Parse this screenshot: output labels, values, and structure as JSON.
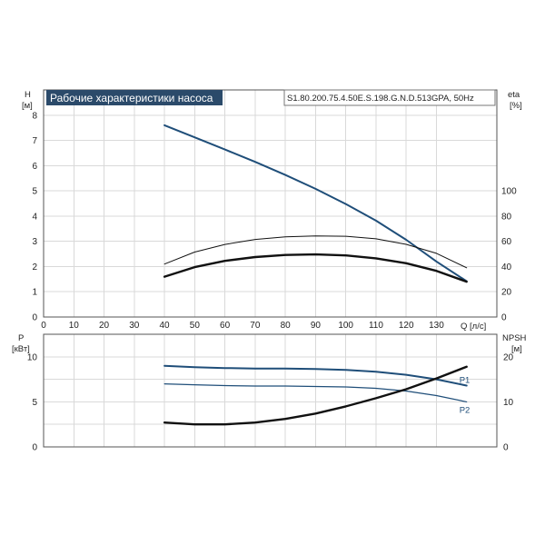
{
  "chart_data": [
    {
      "type": "line",
      "title": "Рабочие характеристики насоса",
      "subtitle": "S1.80.200.75.4.50E.S.198.G.N.D.513GPA, 50Hz",
      "xlabel": "Q [л/с]",
      "ylabel_lines": [
        "H",
        "[м]"
      ],
      "y2label_lines": [
        "eta",
        "[%]"
      ],
      "xlim": [
        0,
        150
      ],
      "ylim": [
        0,
        9
      ],
      "y2lim": [
        0,
        9
      ],
      "x_ticks": [
        0,
        10,
        20,
        30,
        40,
        50,
        60,
        70,
        80,
        90,
        100,
        110,
        120,
        130
      ],
      "y_ticks": [
        0,
        1,
        2,
        3,
        4,
        5,
        6,
        7,
        8
      ],
      "y_tick_labels": [
        "0",
        "1",
        "2",
        "3",
        "4",
        "5",
        "6",
        "7",
        "8"
      ],
      "y2_tick_labels": [
        "0",
        "20",
        "40",
        "60",
        "80",
        "100"
      ],
      "grid": true,
      "series": [
        {
          "key": "H",
          "axis": "left",
          "color": "#1f4e79",
          "width": 2.0,
          "x": [
            40,
            50,
            60,
            70,
            80,
            90,
            100,
            110,
            120,
            130,
            140
          ],
          "y": [
            7.6,
            7.12,
            6.64,
            6.15,
            5.63,
            5.08,
            4.48,
            3.82,
            3.06,
            2.2,
            1.42
          ]
        },
        {
          "key": "eta",
          "axis": "right",
          "color": "#111111",
          "width": 1.0,
          "x": [
            40,
            50,
            60,
            70,
            80,
            90,
            100,
            110,
            120,
            130,
            140
          ],
          "y": [
            42,
            51.5,
            57.5,
            61.5,
            63.5,
            64.3,
            64.0,
            62.0,
            57.6,
            50.5,
            39.0
          ]
        },
        {
          "key": "eta_p",
          "axis": "right",
          "color": "#111111",
          "width": 2.4,
          "x": [
            40,
            50,
            60,
            70,
            80,
            90,
            100,
            110,
            120,
            130,
            140
          ],
          "y": [
            32,
            39.5,
            44.5,
            47.5,
            49.2,
            49.6,
            48.8,
            46.5,
            42.6,
            36.6,
            28.0
          ]
        }
      ]
    },
    {
      "type": "line",
      "xlim": [
        0,
        150
      ],
      "ylim": [
        0,
        12.5
      ],
      "ylabel_lines": [
        "P",
        "[кВт]"
      ],
      "y2label_lines": [
        "NPSH",
        "[м]"
      ],
      "y_ticks": [
        0,
        5,
        10
      ],
      "y_tick_labels": [
        "0",
        "5",
        "10"
      ],
      "y2_ticks": [
        0,
        5,
        10
      ],
      "y2_tick_labels": [
        "0",
        "10",
        "20"
      ],
      "grid": true,
      "series": [
        {
          "key": "P1",
          "name": "P1",
          "color": "#1f4e79",
          "width": 2.0,
          "x": [
            40,
            50,
            60,
            70,
            80,
            90,
            100,
            110,
            120,
            130,
            140
          ],
          "y": [
            9.0,
            8.85,
            8.75,
            8.7,
            8.7,
            8.65,
            8.55,
            8.35,
            8.0,
            7.5,
            6.8
          ]
        },
        {
          "key": "P2",
          "name": "P2",
          "color": "#1f4e79",
          "width": 1.2,
          "x": [
            40,
            50,
            60,
            70,
            80,
            90,
            100,
            110,
            120,
            130,
            140
          ],
          "y": [
            7.0,
            6.9,
            6.8,
            6.75,
            6.75,
            6.7,
            6.65,
            6.5,
            6.2,
            5.7,
            5.0
          ]
        },
        {
          "key": "NPSH",
          "axis": "right",
          "color": "#111111",
          "width": 2.4,
          "x": [
            40,
            50,
            60,
            70,
            80,
            90,
            100,
            110,
            120,
            130,
            140
          ],
          "y": [
            2.7,
            2.5,
            2.5,
            2.7,
            3.1,
            3.7,
            4.5,
            5.4,
            6.4,
            7.6,
            8.9
          ]
        }
      ]
    }
  ],
  "colors": {
    "header_bg": "#2b4a6a",
    "head_curve": "#1f4e79",
    "power_curves": "#1f4e79",
    "eff_npsh": "#111111"
  }
}
